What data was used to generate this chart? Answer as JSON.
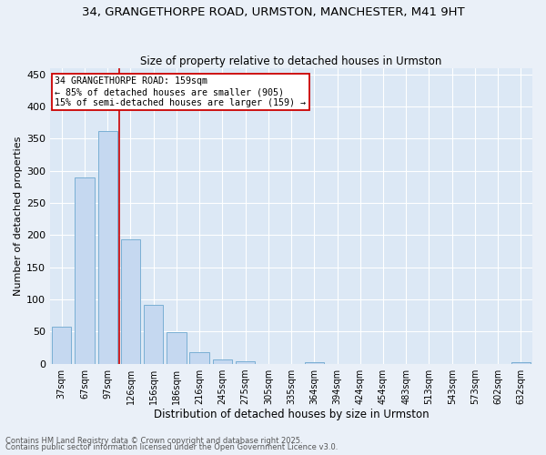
{
  "title_line1": "34, GRANGETHORPE ROAD, URMSTON, MANCHESTER, M41 9HT",
  "title_line2": "Size of property relative to detached houses in Urmston",
  "xlabel": "Distribution of detached houses by size in Urmston",
  "ylabel": "Number of detached properties",
  "categories": [
    "37sqm",
    "67sqm",
    "97sqm",
    "126sqm",
    "156sqm",
    "186sqm",
    "216sqm",
    "245sqm",
    "275sqm",
    "305sqm",
    "335sqm",
    "364sqm",
    "394sqm",
    "424sqm",
    "454sqm",
    "483sqm",
    "513sqm",
    "543sqm",
    "573sqm",
    "602sqm",
    "632sqm"
  ],
  "values": [
    57,
    290,
    362,
    193,
    91,
    49,
    18,
    7,
    4,
    0,
    0,
    2,
    0,
    0,
    0,
    0,
    0,
    0,
    0,
    0,
    2
  ],
  "bar_color": "#c5d8f0",
  "bar_edge_color": "#7aafd4",
  "vline_color": "#cc0000",
  "vline_index": 3,
  "annotation_text": "34 GRANGETHORPE ROAD: 159sqm\n← 85% of detached houses are smaller (905)\n15% of semi-detached houses are larger (159) →",
  "annotation_box_color": "#cc0000",
  "ylim": [
    0,
    460
  ],
  "yticks": [
    0,
    50,
    100,
    150,
    200,
    250,
    300,
    350,
    400,
    450
  ],
  "footer_line1": "Contains HM Land Registry data © Crown copyright and database right 2025.",
  "footer_line2": "Contains public sector information licensed under the Open Government Licence v3.0.",
  "bg_color": "#eaf0f8",
  "plot_bg_color": "#dce8f5",
  "grid_color": "#ffffff"
}
